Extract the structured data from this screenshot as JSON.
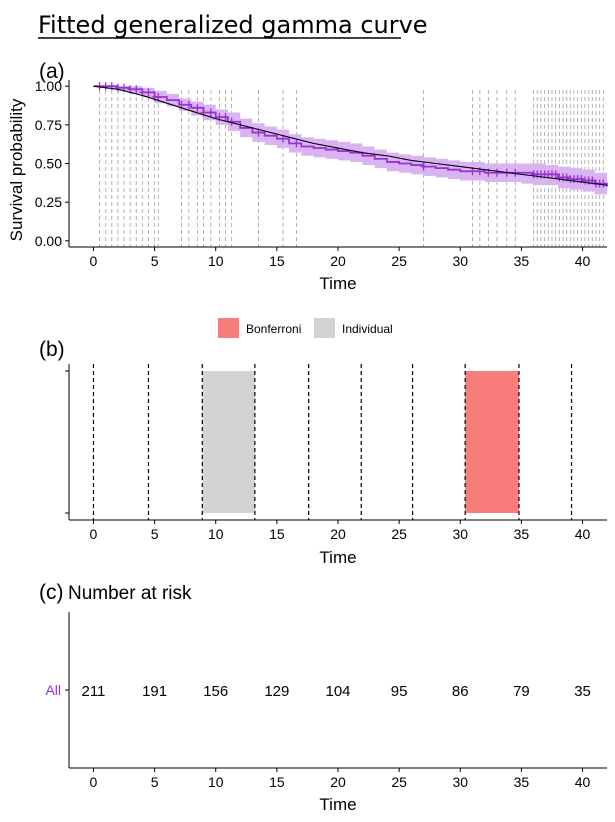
{
  "title": "Fitted generalized gamma curve",
  "chart_data": [
    {
      "panel": "(a)",
      "type": "line",
      "xlabel": "Time",
      "ylabel": "Survival probability",
      "xlim": [
        -2,
        42
      ],
      "ylim": [
        -0.04,
        1.04
      ],
      "x_ticks": [
        0,
        5,
        10,
        15,
        20,
        25,
        30,
        35,
        40
      ],
      "x_tick_labels": [
        "0",
        "5",
        "10",
        "15",
        "20",
        "25",
        "30",
        "35",
        "40"
      ],
      "y_ticks": [
        0,
        0.25,
        0.5,
        0.75,
        1
      ],
      "y_tick_labels": [
        "0.00",
        "0.25",
        "0.50",
        "0.75",
        "1.00"
      ],
      "colors": {
        "km": "#9b30d9",
        "ci_band": "#d9b3f2",
        "fitted": "#000000",
        "censor_lines": "#aaaaaa"
      },
      "series": [
        {
          "name": "Kaplan-Meier estimate",
          "x": [
            0,
            1,
            2,
            3,
            4,
            5,
            6,
            7,
            8,
            9,
            10,
            11,
            12,
            13,
            14,
            15,
            16,
            17,
            18,
            19,
            20,
            21,
            22,
            23,
            24,
            25,
            26,
            27,
            28,
            29,
            30,
            31,
            32,
            33,
            34,
            35,
            36,
            37,
            38,
            39,
            40,
            41,
            42
          ],
          "y": [
            1.0,
            1.0,
            0.99,
            0.98,
            0.96,
            0.93,
            0.91,
            0.88,
            0.86,
            0.83,
            0.8,
            0.77,
            0.73,
            0.7,
            0.68,
            0.66,
            0.63,
            0.61,
            0.6,
            0.59,
            0.58,
            0.57,
            0.55,
            0.53,
            0.51,
            0.5,
            0.49,
            0.48,
            0.47,
            0.46,
            0.45,
            0.45,
            0.44,
            0.44,
            0.44,
            0.44,
            0.43,
            0.43,
            0.41,
            0.4,
            0.39,
            0.37,
            0.35
          ],
          "lower": [
            1.0,
            0.99,
            0.97,
            0.95,
            0.93,
            0.89,
            0.87,
            0.84,
            0.81,
            0.78,
            0.75,
            0.71,
            0.67,
            0.64,
            0.62,
            0.6,
            0.57,
            0.55,
            0.54,
            0.53,
            0.52,
            0.51,
            0.49,
            0.47,
            0.45,
            0.44,
            0.43,
            0.42,
            0.41,
            0.4,
            0.39,
            0.39,
            0.38,
            0.38,
            0.38,
            0.37,
            0.36,
            0.36,
            0.34,
            0.33,
            0.32,
            0.3,
            0.28
          ],
          "upper": [
            1.0,
            1.0,
            1.0,
            1.0,
            0.99,
            0.97,
            0.95,
            0.92,
            0.9,
            0.88,
            0.85,
            0.83,
            0.79,
            0.76,
            0.74,
            0.72,
            0.69,
            0.67,
            0.66,
            0.65,
            0.64,
            0.63,
            0.61,
            0.59,
            0.57,
            0.56,
            0.55,
            0.54,
            0.53,
            0.52,
            0.51,
            0.51,
            0.5,
            0.5,
            0.5,
            0.5,
            0.5,
            0.49,
            0.48,
            0.47,
            0.46,
            0.44,
            0.42
          ]
        },
        {
          "name": "Fitted generalized gamma",
          "x": [
            0,
            2,
            4,
            6,
            8,
            10,
            12,
            14,
            16,
            18,
            20,
            22,
            24,
            26,
            28,
            30,
            32,
            34,
            36,
            38,
            40,
            42
          ],
          "y": [
            1.0,
            0.98,
            0.94,
            0.89,
            0.84,
            0.79,
            0.75,
            0.71,
            0.67,
            0.63,
            0.6,
            0.57,
            0.55,
            0.52,
            0.5,
            0.48,
            0.46,
            0.44,
            0.42,
            0.4,
            0.38,
            0.36
          ]
        }
      ],
      "censor_times": [
        0.5,
        1.0,
        1.5,
        2.0,
        2.5,
        3.0,
        3.5,
        4.0,
        4.5,
        5.0,
        5.3,
        7.2,
        7.8,
        8.5,
        9.0,
        9.6,
        10.3,
        10.8,
        11.3,
        13.5,
        15.5,
        16.6,
        27.0,
        31.0,
        31.6,
        32.3,
        33.0,
        33.8,
        34.5,
        36.0,
        36.3,
        36.6,
        36.9,
        37.2,
        37.5,
        37.8,
        38.1,
        38.4,
        38.7,
        39.0,
        39.3,
        39.6,
        39.9,
        40.2,
        40.5,
        40.8,
        41.1,
        41.4,
        41.7
      ]
    },
    {
      "panel": "(b)",
      "type": "bar",
      "xlabel": "Time",
      "xlim": [
        -2,
        42
      ],
      "x_ticks": [
        0,
        5,
        10,
        15,
        20,
        25,
        30,
        35,
        40
      ],
      "x_tick_labels": [
        "0",
        "5",
        "10",
        "15",
        "20",
        "25",
        "30",
        "35",
        "40"
      ],
      "legend": [
        {
          "label": "Bonferroni",
          "color": "#f87d7b"
        },
        {
          "label": "Individual",
          "color": "#d3d3d3"
        }
      ],
      "legend_position": "top",
      "interval_boundaries": [
        0,
        4.5,
        8.9,
        13.2,
        17.6,
        21.9,
        26.1,
        30.4,
        34.8,
        39.1
      ],
      "highlighted_intervals": [
        {
          "start": 8.9,
          "end": 13.2,
          "method": "Individual"
        },
        {
          "start": 30.4,
          "end": 34.8,
          "method": "Bonferroni"
        }
      ]
    },
    {
      "panel": "(c)",
      "type": "table",
      "title": "Number at risk",
      "xlabel": "Time",
      "xlim": [
        -2,
        42
      ],
      "x_ticks": [
        0,
        5,
        10,
        15,
        20,
        25,
        30,
        35,
        40
      ],
      "x_tick_labels": [
        "0",
        "5",
        "10",
        "15",
        "20",
        "25",
        "30",
        "35",
        "40"
      ],
      "strata": [
        {
          "label": "All",
          "color": "#9b30d9",
          "counts": [
            "211",
            "191",
            "156",
            "129",
            "104",
            "95",
            "86",
            "79",
            "35"
          ]
        }
      ]
    }
  ]
}
